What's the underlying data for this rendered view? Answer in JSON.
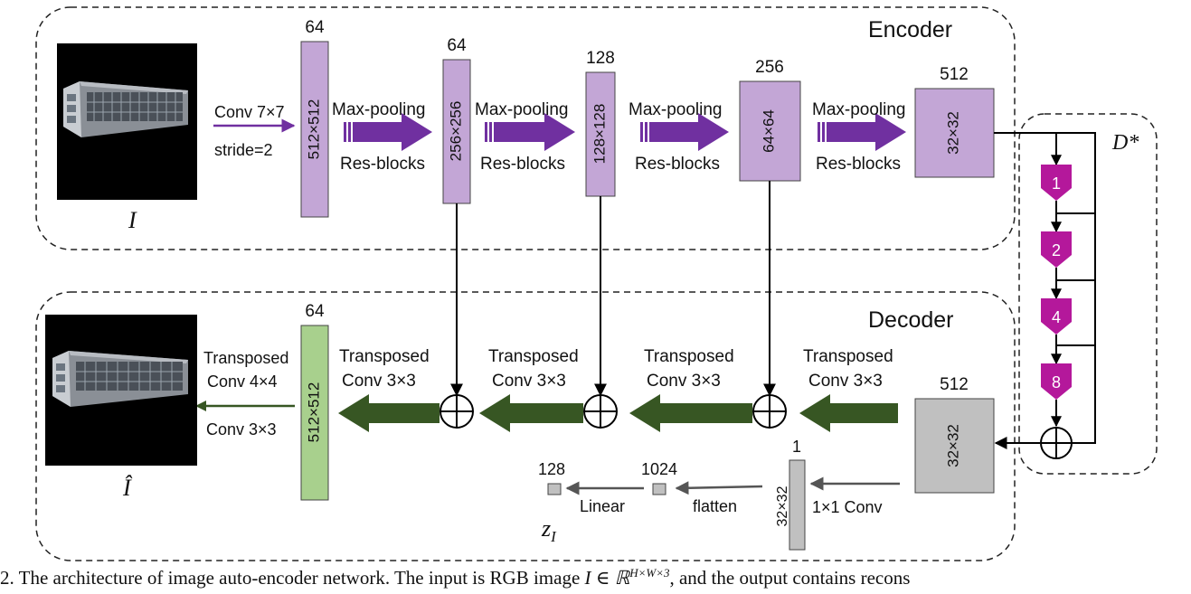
{
  "encoder": {
    "title": "Encoder",
    "input_symbol": "I",
    "conv_label_1": "Conv 7×7",
    "conv_label_2": "stride=2",
    "blocks": [
      {
        "channels": "64",
        "size": "512×512"
      },
      {
        "channels": "64",
        "size": "256×256"
      },
      {
        "channels": "128",
        "size": "128×128"
      },
      {
        "channels": "256",
        "size": "64×64"
      },
      {
        "channels": "512",
        "size": "32×32"
      }
    ],
    "stage_top": "Max-pooling",
    "stage_bottom": "Res-blocks"
  },
  "dilation": {
    "title": "D*",
    "rates": [
      "1",
      "2",
      "4",
      "8"
    ]
  },
  "decoder": {
    "title": "Decoder",
    "output_symbol": "Î",
    "input_block": {
      "channels": "512",
      "size": "32×32"
    },
    "output_block": {
      "channels": "64",
      "size": "512×512"
    },
    "tconv_top": "Transposed",
    "tconv_bottom": "Conv 3×3",
    "final_top": "Transposed",
    "final_mid": "Conv 4×4",
    "final_bottom": "Conv 3×3"
  },
  "latent": {
    "bottleneck_channels": "1",
    "bottleneck_size": "32×32",
    "conv_label": "1×1 Conv",
    "flatten_size": "1024",
    "flatten_label": "flatten",
    "linear_size": "128",
    "linear_label": "Linear",
    "symbol": "z",
    "symbol_sub": "I"
  },
  "caption": {
    "prefix": "2. The architecture of image auto-encoder network. The input is RGB image ",
    "math": "I ∈ ℝ",
    "sup": "H×W×3",
    "suffix": ", and the output contains recons"
  },
  "colors": {
    "encoder_block": "#c3a6d6",
    "decoder_out_block": "#a8d08d",
    "gray_block": "#c0c0c0",
    "purple_arrow": "#7030a0",
    "green_arrow": "#375623",
    "dilation_block": "#b4189b"
  }
}
